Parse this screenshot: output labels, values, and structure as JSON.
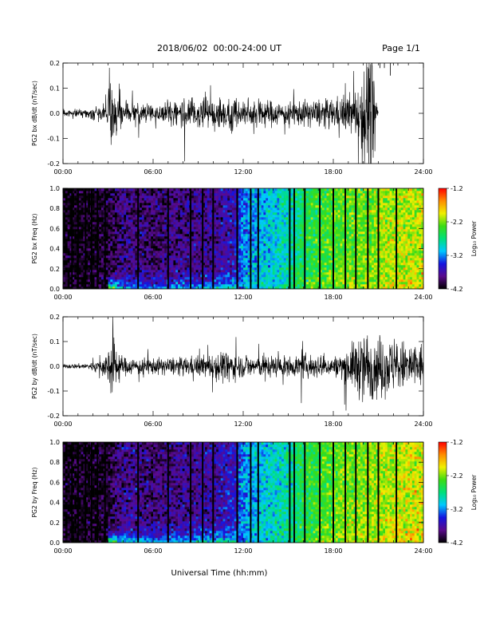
{
  "header": {
    "date_range": "2018/06/02  00:00-24:00 UT",
    "page_label": "Page 1/1"
  },
  "x_axis": {
    "title": "Universal Time (hh:mm)",
    "range_hours": [
      0,
      24
    ],
    "tick_labels": [
      "00:00",
      "06:00",
      "12:00",
      "18:00",
      "24:00"
    ]
  },
  "colorbar": {
    "label": "Log₁₀ Power",
    "tick_labels": [
      "-1.2",
      "-2.2",
      "-3.2",
      "-4.2"
    ],
    "range": [
      -4.2,
      -1.2
    ],
    "colors": [
      "#000000",
      "#5a0a8c",
      "#1414e0",
      "#00c8ff",
      "#00e07a",
      "#3cdc14",
      "#f0f000",
      "#ff8c00",
      "#ff0000"
    ]
  },
  "chart_data": [
    {
      "type": "line",
      "ylabel": "PG2 bx dB/dt (nT/sec)",
      "ylim": [
        -0.2,
        0.2
      ],
      "y_tick_labels": [
        "0.2",
        "0.1",
        "0.0",
        "-0.1",
        "-0.2"
      ],
      "x_range_hours": [
        0,
        24
      ],
      "activity_envelope": {
        "hours": [
          0,
          1.5,
          2.5,
          3.0,
          3.1,
          3.5,
          4.0,
          6.0,
          8.0,
          10.0,
          11.0,
          12.0,
          14.0,
          15.0,
          16.0,
          18.0,
          19.0,
          19.7,
          20.0,
          20.5,
          21,
          24
        ],
        "amplitude": [
          0.015,
          0.02,
          0.04,
          0.07,
          0.3,
          0.15,
          0.06,
          0.05,
          0.07,
          0.09,
          0.1,
          0.08,
          0.07,
          0.06,
          0.07,
          0.08,
          0.1,
          0.15,
          0.3,
          0.4,
          0.0,
          0.0
        ]
      },
      "isolated_points": [
        {
          "hours": 21.1,
          "value": 0.18
        },
        {
          "hours": 21.4,
          "value": 0.18
        },
        {
          "hours": 21.8,
          "value": 0.15
        },
        {
          "hours": 22.3,
          "value": 0.19
        }
      ]
    },
    {
      "type": "heatmap",
      "ylabel": "PG2 bx Freq (Hz)",
      "ylim": [
        0.0,
        1.0
      ],
      "y_tick_labels": [
        "1.0",
        "0.8",
        "0.6",
        "0.4",
        "0.2",
        "0.0"
      ],
      "x_range_hours": [
        0,
        24
      ],
      "power_range": [
        -4.2,
        -1.2
      ],
      "background_level_log10": {
        "hours": [
          0,
          3,
          4,
          6,
          8,
          10,
          11.5,
          12,
          13,
          14,
          15,
          16,
          17,
          18,
          20,
          22,
          24
        ],
        "values": [
          -4.2,
          -4.1,
          -3.85,
          -3.95,
          -3.85,
          -3.8,
          -3.6,
          -3.25,
          -3.1,
          -3.0,
          -2.85,
          -2.6,
          -2.45,
          -2.35,
          -2.25,
          -2.1,
          -2.05
        ]
      },
      "low_frequency_enhancement_hours": [
        3.0,
        11.5
      ],
      "data_gap_lines_hours": [
        0.6,
        1.0,
        1.5,
        1.9,
        2.3,
        2.8,
        5.0,
        7.0,
        8.5,
        9.3,
        10.0,
        11.6,
        12.5,
        13.0,
        15.1,
        15.4,
        16.1,
        17.1,
        18.0,
        18.8,
        19.5,
        20.3,
        21.0,
        22.2
      ]
    },
    {
      "type": "line",
      "ylabel": "PG2 by dB/dt (nT/sec)",
      "ylim": [
        -0.2,
        0.2
      ],
      "y_tick_labels": [
        "0.2",
        "0.1",
        "0.0",
        "-0.1",
        "-0.2"
      ],
      "x_range_hours": [
        0,
        24
      ],
      "activity_envelope": {
        "hours": [
          0,
          1.5,
          2.5,
          3.0,
          3.1,
          3.5,
          4.0,
          6.0,
          8.0,
          9.5,
          10.5,
          11.5,
          12.0,
          14.0,
          15.0,
          16.0,
          17.0,
          18.0,
          19.0,
          20.0,
          21.0,
          22.0,
          24
        ],
        "amplitude": [
          0.012,
          0.015,
          0.04,
          0.08,
          0.3,
          0.12,
          0.05,
          0.045,
          0.05,
          0.06,
          0.09,
          0.07,
          0.06,
          0.06,
          0.05,
          0.07,
          0.06,
          0.05,
          0.1,
          0.2,
          0.17,
          0.15,
          0.13
        ]
      },
      "isolated_points": []
    },
    {
      "type": "heatmap",
      "ylabel": "PG2 by Freq (Hz)",
      "ylim": [
        0.0,
        1.0
      ],
      "y_tick_labels": [
        "1.0",
        "0.8",
        "0.6",
        "0.4",
        "0.2",
        "0.0"
      ],
      "x_range_hours": [
        0,
        24
      ],
      "power_range": [
        -4.2,
        -1.2
      ],
      "background_level_log10": {
        "hours": [
          0,
          3,
          4,
          6,
          8,
          10,
          11.5,
          12,
          13,
          14,
          15,
          16,
          17,
          18,
          20,
          22,
          24
        ],
        "values": [
          -4.2,
          -4.1,
          -3.8,
          -3.9,
          -3.8,
          -3.75,
          -3.55,
          -3.2,
          -3.05,
          -2.95,
          -2.8,
          -2.55,
          -2.4,
          -2.3,
          -2.2,
          -2.05,
          -2.0
        ]
      },
      "low_frequency_enhancement_hours": [
        3.0,
        11.5
      ],
      "data_gap_lines_hours": [
        0.6,
        1.0,
        1.5,
        1.9,
        2.3,
        2.8,
        5.0,
        7.0,
        8.5,
        9.3,
        10.0,
        11.6,
        12.5,
        13.0,
        15.1,
        15.4,
        16.1,
        17.1,
        18.0,
        18.8,
        19.5,
        20.3,
        21.0,
        22.2
      ]
    }
  ]
}
